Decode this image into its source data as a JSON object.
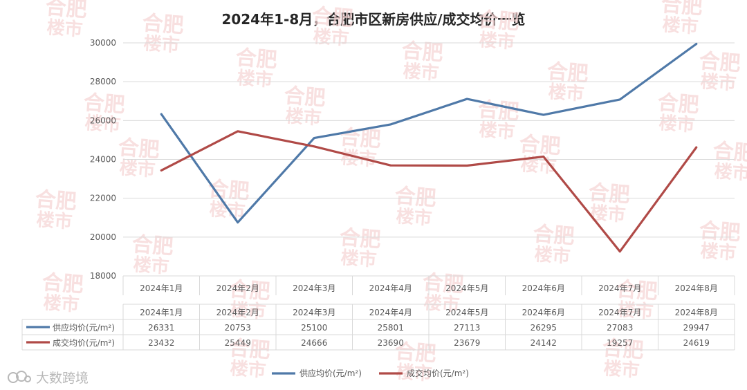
{
  "title": "2024年1-8月，合肥市区新房供应/成交均价一览",
  "credit": "大数跨境",
  "chart_data": {
    "type": "line",
    "categories": [
      "2024年1月",
      "2024年2月",
      "2024年3月",
      "2024年4月",
      "2024年5月",
      "2024年6月",
      "2024年7月",
      "2024年8月"
    ],
    "series": [
      {
        "name": "供应均价(元/m²)",
        "color": "#4f79a8",
        "values": [
          26331,
          20753,
          25100,
          25801,
          27113,
          26295,
          27083,
          29947
        ]
      },
      {
        "name": "成交均价(元/m²)",
        "color": "#b04a47",
        "values": [
          23432,
          25449,
          24666,
          23690,
          23679,
          24142,
          19257,
          24619
        ]
      }
    ],
    "ylim": [
      18000,
      30000
    ],
    "yticks": [
      18000,
      20000,
      22000,
      24000,
      26000,
      28000,
      30000
    ],
    "grid": true,
    "legend_position": "bottom",
    "data_table": true
  },
  "watermark_text": [
    "合肥",
    "楼市"
  ],
  "colors": {
    "watermark": "#f6d4d4",
    "grid": "#d9d9d9",
    "axis_text": "#595959"
  }
}
